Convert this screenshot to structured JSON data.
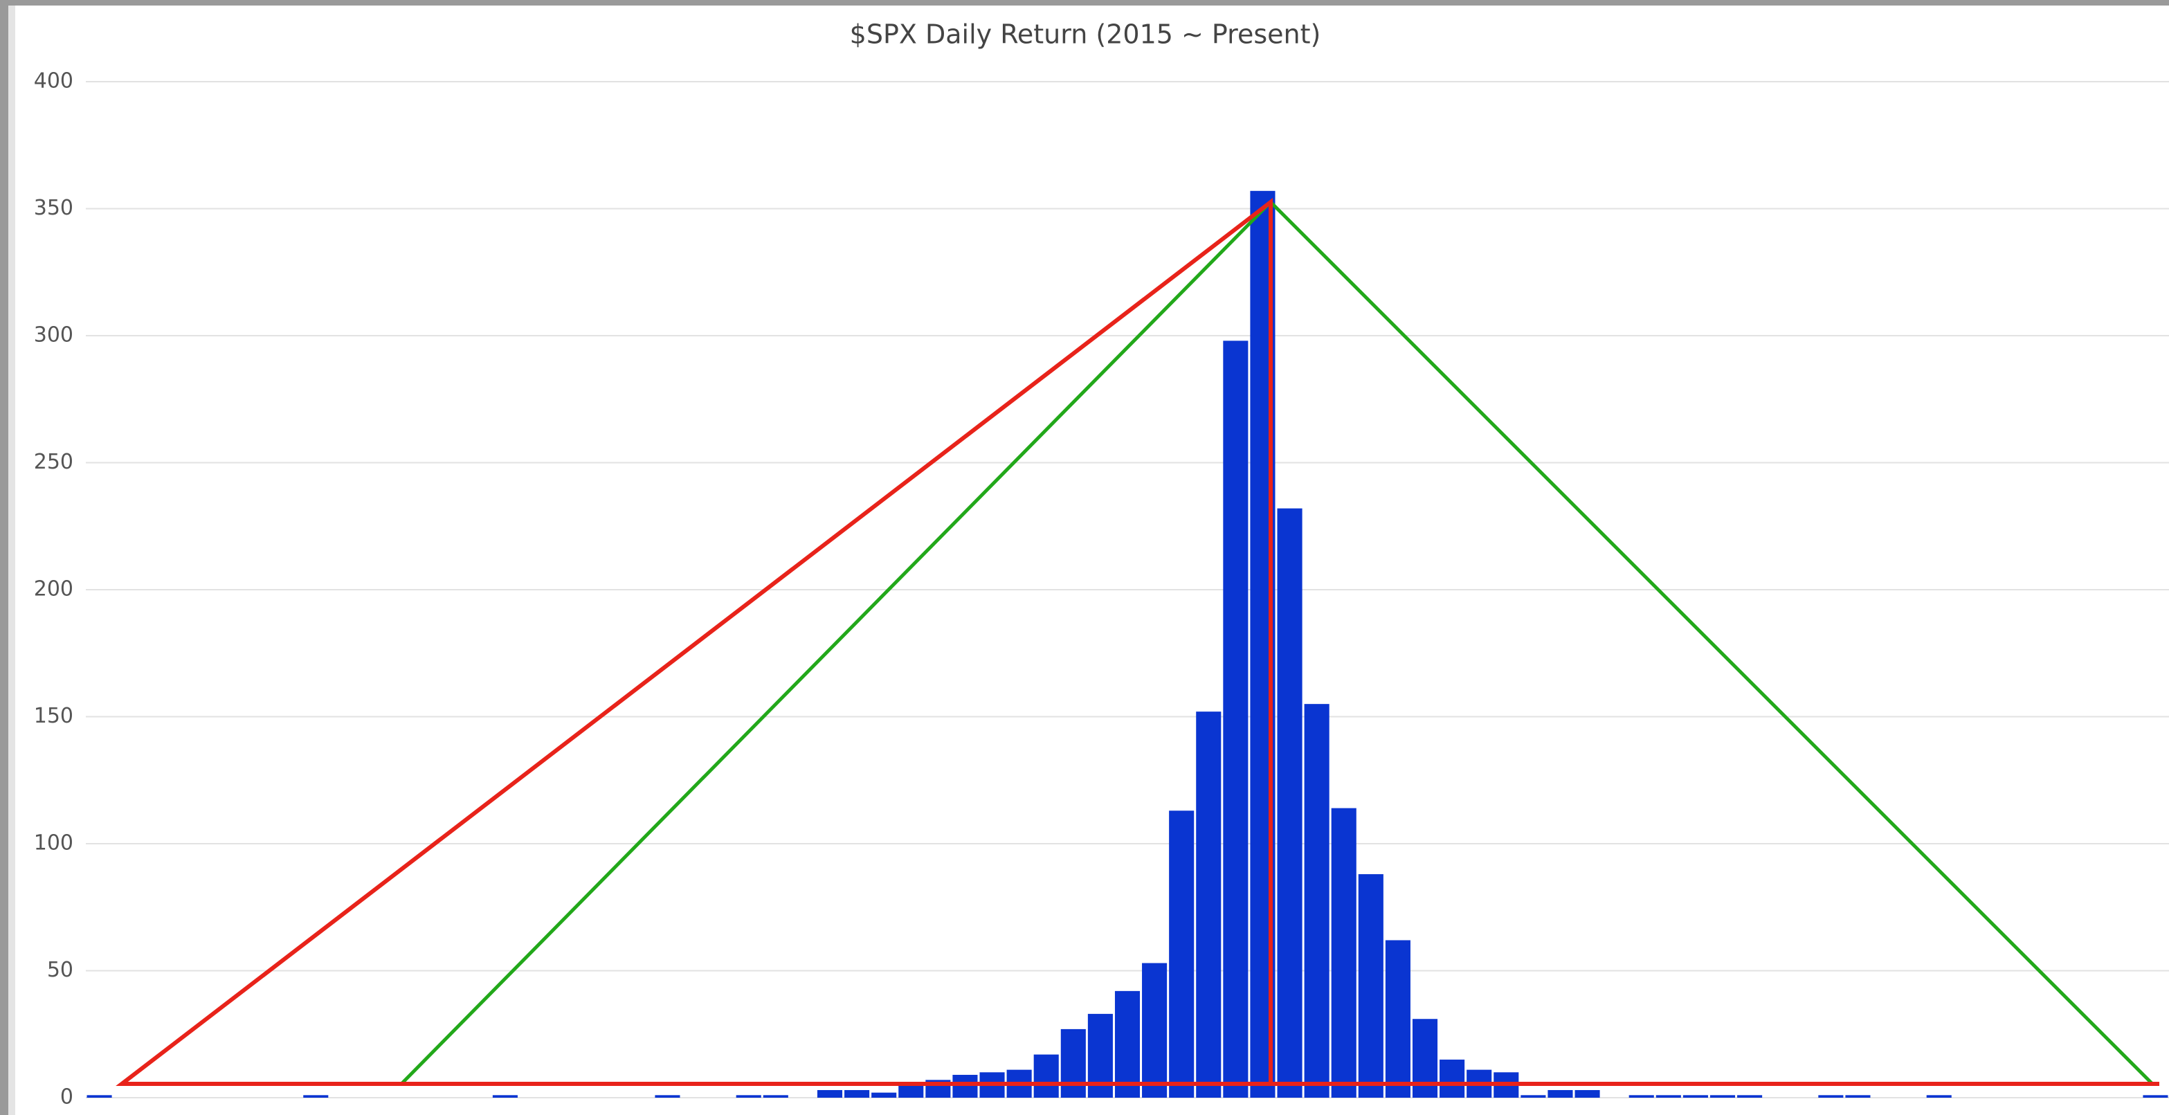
{
  "chart_data": {
    "type": "bar",
    "title": "$SPX Daily Return (2015 ~ Present)",
    "categories": [
      null,
      null,
      null,
      null,
      null,
      null,
      null,
      null,
      null,
      null,
      null,
      null,
      null,
      null,
      null,
      null,
      null,
      null,
      null,
      null,
      null,
      null,
      null,
      null,
      null,
      null,
      null,
      null,
      null,
      null,
      null,
      null,
      null,
      null,
      null,
      null,
      null,
      null,
      null,
      null,
      null,
      null,
      null,
      null,
      null,
      null,
      null,
      null,
      null,
      null,
      null,
      null,
      null,
      null,
      null,
      null,
      null,
      null,
      null,
      null,
      null,
      null,
      null,
      null,
      null,
      null,
      null,
      null,
      null,
      null,
      null,
      null,
      null,
      null,
      null,
      null,
      null
    ],
    "values": [
      1,
      0,
      0,
      0,
      0,
      0,
      0,
      0,
      1,
      0,
      0,
      0,
      0,
      0,
      0,
      1,
      0,
      0,
      0,
      0,
      0,
      1,
      0,
      0,
      1,
      1,
      0,
      3,
      3,
      2,
      5,
      7,
      9,
      10,
      11,
      17,
      27,
      33,
      42,
      53,
      113,
      152,
      298,
      357,
      232,
      155,
      114,
      88,
      62,
      31,
      15,
      11,
      10,
      1,
      3,
      3,
      0,
      1,
      1,
      1,
      1,
      1,
      0,
      0,
      1,
      1,
      0,
      0,
      1,
      0,
      0,
      0,
      0,
      0,
      0,
      0,
      1
    ],
    "color": "#0a35d1",
    "ylim": [
      0,
      400
    ],
    "yticks": [
      0,
      50,
      100,
      150,
      200,
      250,
      300,
      350,
      400
    ],
    "grid": true
  }
}
